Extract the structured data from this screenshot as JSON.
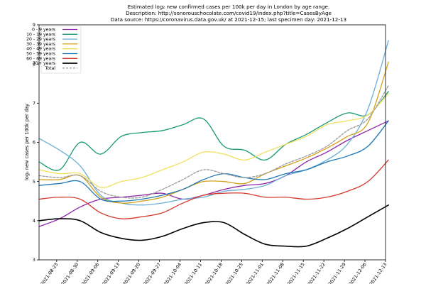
{
  "chart_data": {
    "type": "line",
    "title_lines": [
      "Estimated log₂ new confirmed cases per 100k per day in London by age range.",
      "Description: http://sonorouschocolate.com/covid19/index.php?title=CasesByAge",
      "Data source: https://coronavirus.data.gov.uk/ at 2021-12-15; last specimen day: 2021-12-13"
    ],
    "xlabel": "",
    "ylabel": "log₂ new cases per 100k per day",
    "ylim": [
      3,
      9
    ],
    "y_ticks": [
      "3",
      "4",
      "5",
      "6",
      "7",
      "8",
      "9"
    ],
    "x_start": "2021-08-17",
    "x_end": "2021-12-13",
    "x_ticks": [
      "2021-08-23",
      "2021-08-30",
      "2021-09-06",
      "2021-09-13",
      "2021-09-20",
      "2021-09-27",
      "2021-10-04",
      "2021-10-11",
      "2021-10-18",
      "2021-10-25",
      "2021-11-01",
      "2021-11-08",
      "2021-11-15",
      "2021-11-22",
      "2021-11-29",
      "2021-12-06",
      "2021-12-13"
    ],
    "x_days": [
      0,
      7,
      14,
      21,
      28,
      35,
      42,
      49,
      56,
      63,
      70,
      77,
      84,
      91,
      98,
      105,
      112,
      119
    ],
    "series": [
      {
        "name": "0 - 9 years",
        "color": "#8e24aa",
        "dashed": false,
        "values": [
          3.85,
          4.05,
          4.35,
          4.55,
          4.6,
          4.65,
          4.7,
          4.55,
          4.65,
          4.8,
          4.9,
          4.95,
          5.15,
          5.5,
          5.75,
          6.05,
          6.3,
          6.55
        ]
      },
      {
        "name": "10 - 19 years",
        "color": "#1a9974",
        "dashed": false,
        "values": [
          5.5,
          5.3,
          6.0,
          5.7,
          6.15,
          6.25,
          6.3,
          6.45,
          6.6,
          5.9,
          5.8,
          5.55,
          5.95,
          6.2,
          6.5,
          6.75,
          6.7,
          7.3
        ]
      },
      {
        "name": "20 - 29 years",
        "color": "#6aaed6",
        "dashed": false,
        "values": [
          6.1,
          5.8,
          5.4,
          4.65,
          4.45,
          4.4,
          4.45,
          4.55,
          4.6,
          4.75,
          4.8,
          4.9,
          5.15,
          5.3,
          5.55,
          5.95,
          6.85,
          8.6
        ]
      },
      {
        "name": "30 - 39 years",
        "color": "#d4a017",
        "dashed": false,
        "values": [
          5.05,
          5.05,
          5.15,
          4.6,
          4.45,
          4.5,
          4.6,
          4.8,
          5.0,
          5.0,
          4.95,
          5.2,
          5.4,
          5.6,
          5.85,
          6.15,
          6.5,
          8.05
        ]
      },
      {
        "name": "40 - 49 years",
        "color": "#f0e060",
        "dashed": false,
        "values": [
          5.3,
          5.2,
          5.2,
          4.85,
          5.0,
          5.1,
          5.3,
          5.5,
          5.75,
          5.7,
          5.55,
          5.75,
          5.95,
          6.15,
          6.45,
          6.55,
          6.7,
          7.25
        ]
      },
      {
        "name": "50 - 59 years",
        "color": "#1f77b4",
        "dashed": false,
        "values": [
          4.9,
          4.95,
          5.0,
          4.55,
          4.5,
          4.55,
          4.65,
          4.8,
          5.05,
          5.2,
          5.1,
          5.05,
          5.2,
          5.3,
          5.5,
          5.65,
          5.9,
          6.55
        ]
      },
      {
        "name": "60 - 69 years",
        "color": "#d43a2c",
        "dashed": false,
        "values": [
          4.55,
          4.6,
          4.55,
          4.2,
          4.05,
          4.1,
          4.2,
          4.45,
          4.65,
          4.7,
          4.7,
          4.6,
          4.6,
          4.55,
          4.6,
          4.75,
          5.0,
          5.55
        ]
      },
      {
        "name": "70+ years",
        "color": "#000000",
        "dashed": false,
        "values": [
          4.0,
          4.05,
          4.0,
          3.7,
          3.55,
          3.5,
          3.6,
          3.8,
          3.95,
          3.95,
          3.65,
          3.4,
          3.35,
          3.35,
          3.55,
          3.8,
          4.1,
          4.4
        ]
      },
      {
        "name": "Total",
        "color": "#999999",
        "dashed": true,
        "values": [
          5.15,
          5.1,
          5.15,
          4.75,
          4.6,
          4.6,
          4.8,
          5.05,
          5.3,
          5.2,
          5.1,
          5.2,
          5.45,
          5.65,
          5.9,
          6.3,
          6.6,
          7.45
        ]
      }
    ],
    "legend_position": "top-left",
    "grid": false
  }
}
